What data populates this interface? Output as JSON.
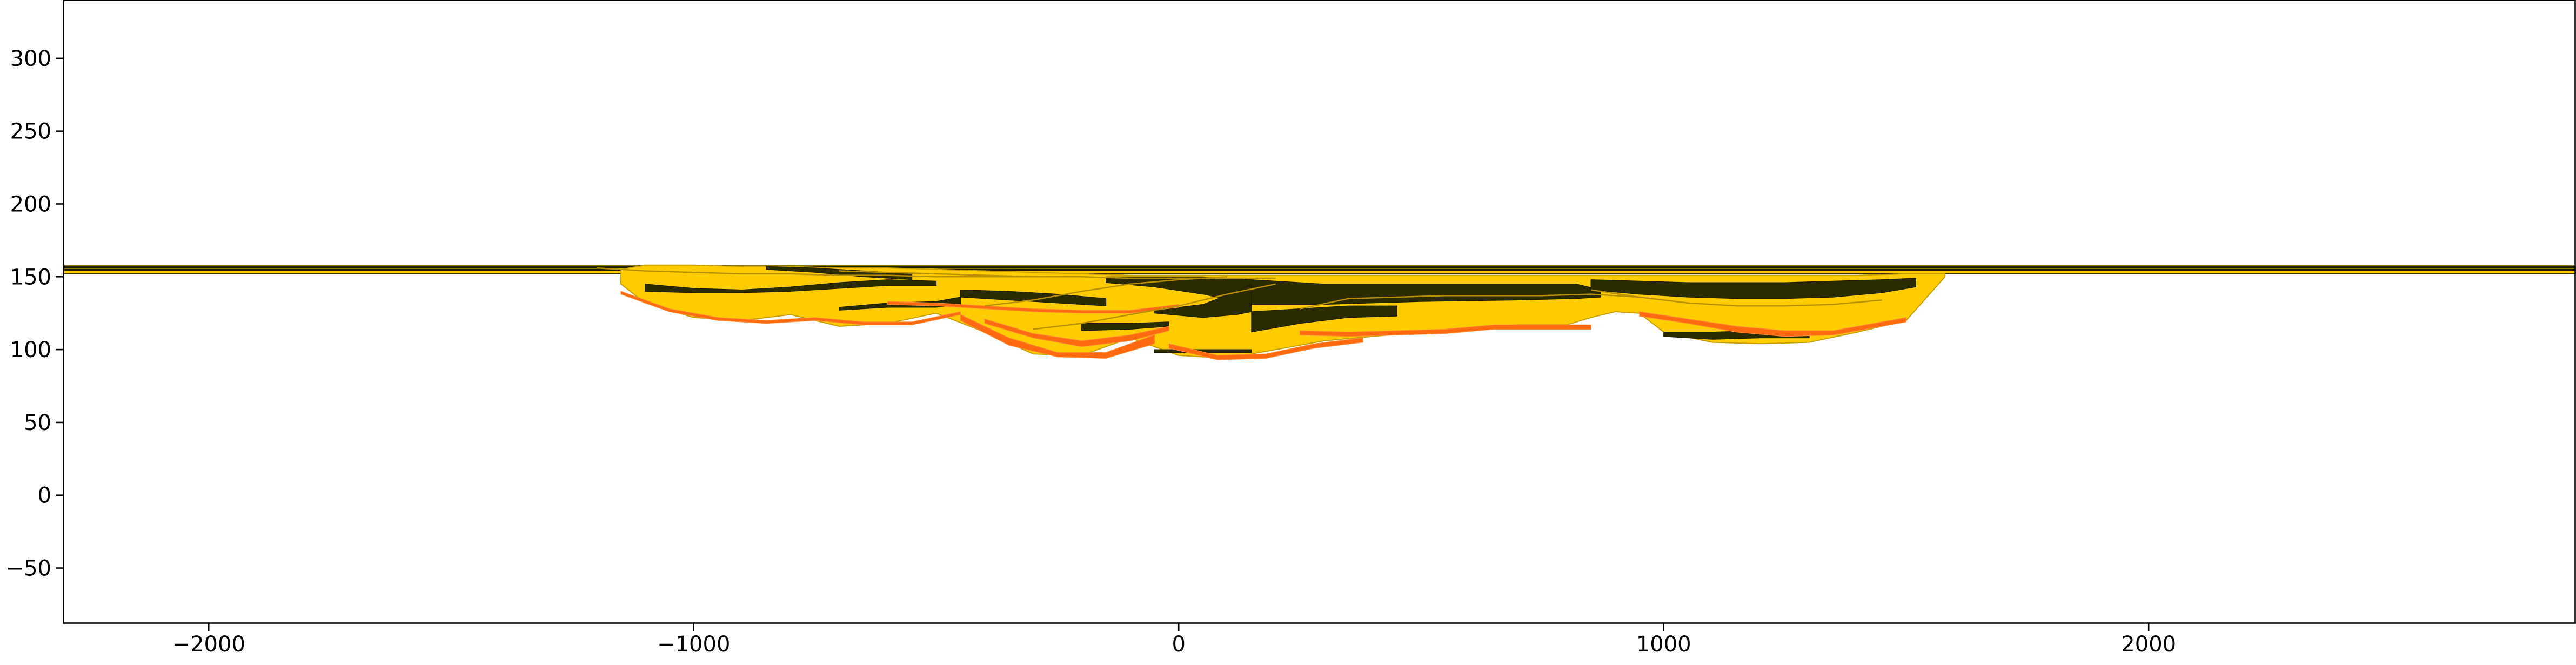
{
  "chart_data": {
    "type": "area",
    "title": "",
    "xlabel": "",
    "ylabel": "",
    "xlim": [
      -2300,
      2880
    ],
    "ylim": [
      -88,
      340
    ],
    "grid": false,
    "legend": "none",
    "xticks": [
      -2000,
      -1000,
      0,
      1000,
      2000
    ],
    "yticks": [
      -50,
      0,
      50,
      100,
      150,
      200,
      250,
      300
    ],
    "xtick_labels": [
      "−2000",
      "−1000",
      "0",
      "1000",
      "2000"
    ],
    "ytick_labels": [
      "−50",
      "0",
      "50",
      "100",
      "150",
      "200",
      "250",
      "300"
    ],
    "colors": {
      "sand": "#ffcc00",
      "mud": "#2b2b00",
      "gravel": "#ff6a10",
      "outline": "#1e1e00"
    },
    "background_layers": [
      {
        "color": "sand",
        "x": [
          -2300,
          2880
        ],
        "top": 158,
        "bottom": 152
      },
      {
        "color": "mud",
        "x": [
          -2300,
          2880
        ],
        "top": 157.2,
        "bottom": 156.2
      },
      {
        "color": "mud",
        "x": [
          -2300,
          2880
        ],
        "top": 155.2,
        "bottom": 154.4
      }
    ],
    "channel_fill": {
      "color": "sand",
      "x": [
        -1150,
        -1100,
        -1000,
        -900,
        -800,
        -700,
        -600,
        -500,
        -400,
        -300,
        -200,
        -100,
        0,
        100,
        200,
        300,
        400,
        500,
        600,
        700,
        800,
        850,
        900,
        950,
        1000,
        1100,
        1200,
        1300,
        1400,
        1500,
        1580
      ],
      "top": [
        155,
        158,
        158,
        157,
        157,
        156,
        156,
        155,
        154,
        153,
        152,
        151,
        151,
        151,
        151,
        151,
        151,
        151,
        151,
        151,
        151,
        151,
        151,
        151,
        151,
        151,
        151,
        151,
        151,
        152,
        152
      ],
      "bottom": [
        145,
        132,
        122,
        120,
        124,
        116,
        118,
        125,
        112,
        97,
        96,
        108,
        96,
        94,
        100,
        106,
        109,
        112,
        115,
        117,
        117,
        122,
        126,
        125,
        112,
        105,
        104,
        105,
        112,
        120,
        150
      ]
    },
    "series": [
      {
        "color": "mud",
        "x": [
          -1100,
          -1000,
          -900,
          -800,
          -700,
          -600,
          -500
        ],
        "upper": [
          145,
          142,
          141,
          143,
          146,
          148,
          147
        ],
        "lower": [
          140,
          139,
          139,
          140,
          142,
          144,
          144
        ]
      },
      {
        "color": "mud",
        "x": [
          -850,
          -750,
          -650,
          -550
        ],
        "upper": [
          157,
          156,
          154,
          152
        ],
        "lower": [
          155,
          153,
          150,
          148
        ]
      },
      {
        "color": "mud",
        "x": [
          -700,
          -600,
          -500,
          -450
        ],
        "upper": [
          129,
          132,
          133,
          136
        ],
        "lower": [
          127,
          129,
          129,
          131
        ]
      },
      {
        "color": "mud",
        "x": [
          -450,
          -350,
          -250,
          -150
        ],
        "upper": [
          141,
          140,
          138,
          135
        ],
        "lower": [
          136,
          134,
          132,
          130
        ]
      },
      {
        "color": "mud",
        "x": [
          -150,
          -50,
          50,
          150,
          300,
          500,
          700,
          820,
          870
        ],
        "upper": [
          150,
          150,
          150,
          148,
          145,
          145,
          145,
          145,
          141
        ],
        "lower": [
          146,
          143,
          138,
          131,
          131,
          133,
          134,
          135,
          136
        ]
      },
      {
        "color": "mud",
        "x": [
          -50,
          50,
          120,
          150
        ],
        "upper": [
          127,
          131,
          140,
          145
        ],
        "lower": [
          125,
          122,
          124,
          126
        ]
      },
      {
        "color": "mud",
        "x": [
          150,
          250,
          350,
          450
        ],
        "upper": [
          126,
          128,
          130,
          130
        ],
        "lower": [
          112,
          118,
          122,
          123
        ]
      },
      {
        "color": "mud",
        "x": [
          -200,
          -100,
          -20
        ],
        "upper": [
          118,
          118,
          119
        ],
        "lower": [
          113,
          114,
          116
        ]
      },
      {
        "color": "mud",
        "x": [
          850,
          950,
          1050,
          1150,
          1250,
          1350,
          1450,
          1520
        ],
        "upper": [
          148,
          147,
          146,
          146,
          146,
          147,
          148,
          149
        ],
        "lower": [
          141,
          138,
          136,
          135,
          135,
          136,
          139,
          143
        ]
      },
      {
        "color": "mud",
        "x": [
          -50,
          50,
          150
        ],
        "upper": [
          100,
          100,
          100
        ],
        "lower": [
          98,
          98,
          98
        ]
      },
      {
        "color": "mud",
        "x": [
          1000,
          1100,
          1200,
          1300
        ],
        "upper": [
          112,
          112,
          113,
          112
        ],
        "lower": [
          109,
          107,
          108,
          108
        ]
      },
      {
        "color": "gravel",
        "x": [
          -1150,
          -1050,
          -950,
          -850,
          -750,
          -650,
          -550,
          -450
        ],
        "upper": [
          140,
          128,
          122,
          120,
          122,
          119,
          119,
          126
        ],
        "lower": [
          138,
          126,
          120,
          118,
          120,
          117,
          117,
          124
        ]
      },
      {
        "color": "gravel",
        "x": [
          -450,
          -350,
          -250,
          -150,
          -50
        ],
        "upper": [
          124,
          108,
          98,
          98,
          110
        ],
        "lower": [
          120,
          103,
          95,
          94,
          104
        ]
      },
      {
        "color": "gravel",
        "x": [
          -400,
          -300,
          -200,
          -100,
          -20
        ],
        "upper": [
          121,
          111,
          106,
          110,
          116
        ],
        "lower": [
          118,
          108,
          102,
          106,
          113
        ]
      },
      {
        "color": "gravel",
        "x": [
          -20,
          80,
          180,
          280,
          380
        ],
        "upper": [
          104,
          96,
          97,
          104,
          108
        ],
        "lower": [
          101,
          93,
          94,
          101,
          105
        ]
      },
      {
        "color": "gravel",
        "x": [
          250,
          350,
          450,
          550,
          650,
          750,
          850
        ],
        "upper": [
          113,
          112,
          113,
          114,
          117,
          117,
          117
        ],
        "lower": [
          110,
          109,
          110,
          111,
          114,
          114,
          114
        ]
      },
      {
        "color": "gravel",
        "x": [
          950,
          1050,
          1150,
          1250,
          1350,
          1450,
          1500
        ],
        "upper": [
          126,
          121,
          116,
          113,
          113,
          119,
          122
        ],
        "lower": [
          123,
          118,
          112,
          109,
          110,
          116,
          119
        ]
      },
      {
        "color": "gravel",
        "x": [
          -600,
          -500,
          -400,
          -300,
          -200,
          -100,
          0
        ],
        "upper": [
          133,
          132,
          130,
          128,
          127,
          127,
          131
        ],
        "lower": [
          131,
          130,
          128,
          126,
          125,
          125,
          129
        ]
      }
    ],
    "contacts": [
      {
        "x": [
          -1200,
          -1100,
          -1000,
          -900,
          -800,
          -700,
          -600,
          -500,
          -400,
          -300
        ],
        "y": [
          156,
          154,
          153,
          152,
          152,
          151,
          151,
          150,
          150,
          150
        ]
      },
      {
        "x": [
          -700,
          -600,
          -500,
          -400,
          -300,
          -200,
          -100,
          0,
          100,
          200
        ],
        "y": [
          154,
          153,
          152,
          151,
          150,
          150,
          149,
          149,
          149,
          149
        ]
      },
      {
        "x": [
          -400,
          -300,
          -200,
          -100,
          0,
          100
        ],
        "y": [
          130,
          134,
          140,
          145,
          148,
          150
        ]
      },
      {
        "x": [
          -300,
          -200,
          -100,
          0,
          100,
          200
        ],
        "y": [
          114,
          118,
          124,
          130,
          138,
          145
        ]
      },
      {
        "x": [
          250,
          350,
          450,
          550,
          650,
          750,
          850,
          950
        ],
        "y": [
          128,
          135,
          136,
          137,
          137,
          137,
          138,
          136
        ]
      },
      {
        "x": [
          850,
          950,
          1050,
          1150,
          1250,
          1350,
          1450
        ],
        "y": [
          141,
          136,
          132,
          130,
          130,
          131,
          134
        ]
      }
    ]
  }
}
